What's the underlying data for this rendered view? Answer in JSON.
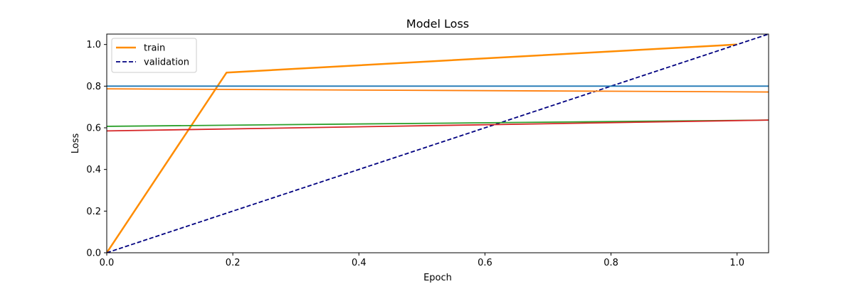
{
  "chart_data": {
    "type": "line",
    "title": "Model Loss",
    "xlabel": "Epoch",
    "ylabel": "Loss",
    "xlim": [
      0.0,
      1.05
    ],
    "ylim": [
      0.0,
      1.05
    ],
    "xticks": [
      0.0,
      0.2,
      0.4,
      0.6,
      0.8,
      1.0
    ],
    "yticks": [
      0.0,
      0.2,
      0.4,
      0.6,
      0.8,
      1.0
    ],
    "xtick_labels": [
      "0.0",
      "0.2",
      "0.4",
      "0.6",
      "0.8",
      "1.0"
    ],
    "ytick_labels": [
      "0.0",
      "0.2",
      "0.4",
      "0.6",
      "0.8",
      "1.0"
    ],
    "grid": false,
    "legend_position": "top-left",
    "series": [
      {
        "name": "train",
        "color": "#ff8c00",
        "dash": "solid",
        "width": 2.5,
        "in_legend": true,
        "x": [
          0.0,
          0.19,
          1.0
        ],
        "y": [
          0.0,
          0.865,
          1.0
        ]
      },
      {
        "name": "validation",
        "color": "#000080",
        "dash": "dashed",
        "width": 1.8,
        "in_legend": true,
        "x": [
          0.0,
          1.05
        ],
        "y": [
          0.0,
          1.05
        ]
      },
      {
        "color": "#1f77b4",
        "dash": "solid",
        "width": 1.8,
        "in_legend": false,
        "x": [
          0.0,
          1.05
        ],
        "y": [
          0.8,
          0.8
        ]
      },
      {
        "color": "#ff7f0e",
        "dash": "solid",
        "width": 1.8,
        "in_legend": false,
        "x": [
          0.0,
          1.05
        ],
        "y": [
          0.787,
          0.772
        ]
      },
      {
        "color": "#2ca02c",
        "dash": "solid",
        "width": 1.8,
        "in_legend": false,
        "x": [
          0.0,
          1.05
        ],
        "y": [
          0.607,
          0.637
        ]
      },
      {
        "color": "#d62728",
        "dash": "solid",
        "width": 1.8,
        "in_legend": false,
        "x": [
          0.0,
          1.05
        ],
        "y": [
          0.585,
          0.637
        ]
      }
    ]
  }
}
